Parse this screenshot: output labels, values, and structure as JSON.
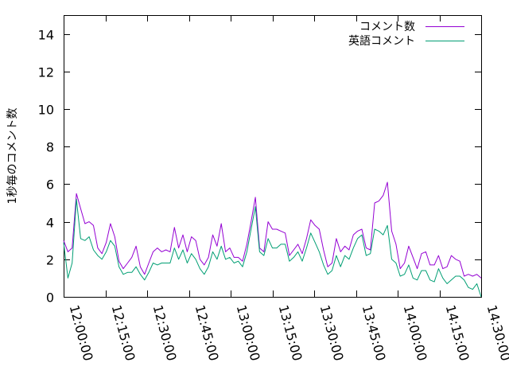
{
  "chart_data": {
    "type": "line",
    "title": "",
    "xlabel": "",
    "ylabel": "1秒毎のコメント数",
    "ylim": [
      0,
      15
    ],
    "yticks": [
      0,
      2,
      4,
      6,
      8,
      10,
      12,
      14
    ],
    "xlim": [
      "12:00:00",
      "14:30:00"
    ],
    "xtick_labels": [
      "12:00:00",
      "12:15:00",
      "12:30:00",
      "12:45:00",
      "13:00:00",
      "13:15:00",
      "13:30:00",
      "13:45:00",
      "14:00:00",
      "14:15:00",
      "14:30:00"
    ],
    "x_interval": "1 minute",
    "grid": false,
    "legend_position": "top-right",
    "series": [
      {
        "name": "コメント数",
        "color": "#9400d3",
        "values": [
          3.0,
          2.4,
          2.6,
          5.5,
          4.7,
          3.9,
          4.0,
          3.8,
          2.6,
          2.3,
          2.9,
          3.9,
          3.2,
          1.9,
          1.5,
          1.8,
          2.1,
          2.7,
          1.6,
          1.2,
          1.8,
          2.4,
          2.6,
          2.4,
          2.5,
          2.4,
          3.7,
          2.6,
          3.3,
          2.4,
          3.2,
          3.0,
          2.0,
          1.7,
          2.1,
          3.3,
          2.7,
          3.9,
          2.4,
          2.6,
          2.1,
          2.1,
          1.9,
          2.8,
          4.0,
          5.3,
          2.6,
          2.4,
          4.0,
          3.6,
          3.6,
          3.5,
          3.4,
          2.2,
          2.5,
          2.8,
          2.3,
          3.1,
          4.1,
          3.8,
          3.6,
          2.5,
          1.6,
          1.8,
          3.1,
          2.4,
          2.7,
          2.5,
          3.3,
          3.5,
          3.6,
          2.6,
          2.5,
          5.0,
          5.1,
          5.4,
          6.1,
          3.5,
          2.8,
          1.5,
          1.8,
          2.7,
          2.1,
          1.5,
          2.3,
          2.4,
          1.7,
          1.7,
          2.2,
          1.5,
          1.6,
          2.2,
          2.0,
          1.9,
          1.1,
          1.2,
          1.1,
          1.2,
          1.0
        ]
      },
      {
        "name": "英語コメント",
        "color": "#009e73",
        "values": [
          2.9,
          1.0,
          1.8,
          5.2,
          3.1,
          3.0,
          3.2,
          2.5,
          2.2,
          2.0,
          2.4,
          3.0,
          2.7,
          1.6,
          1.2,
          1.3,
          1.3,
          1.6,
          1.2,
          0.9,
          1.3,
          1.8,
          1.7,
          1.8,
          1.8,
          1.8,
          2.6,
          2.0,
          2.5,
          1.8,
          2.3,
          2.0,
          1.5,
          1.2,
          1.6,
          2.4,
          2.0,
          2.7,
          2.0,
          2.1,
          1.8,
          1.9,
          1.6,
          2.4,
          3.6,
          4.8,
          2.4,
          2.2,
          3.1,
          2.6,
          2.6,
          2.8,
          2.8,
          1.9,
          2.1,
          2.4,
          1.9,
          2.6,
          3.4,
          2.9,
          2.4,
          1.7,
          1.2,
          1.4,
          2.2,
          1.6,
          2.2,
          2.0,
          2.6,
          3.1,
          3.3,
          2.2,
          2.3,
          3.6,
          3.5,
          3.3,
          3.8,
          2.0,
          1.8,
          1.1,
          1.2,
          1.7,
          1.0,
          0.9,
          1.4,
          1.4,
          0.9,
          0.8,
          1.5,
          1.0,
          0.7,
          0.9,
          1.1,
          1.1,
          0.9,
          0.5,
          0.4,
          0.7,
          0.0
        ]
      }
    ]
  }
}
